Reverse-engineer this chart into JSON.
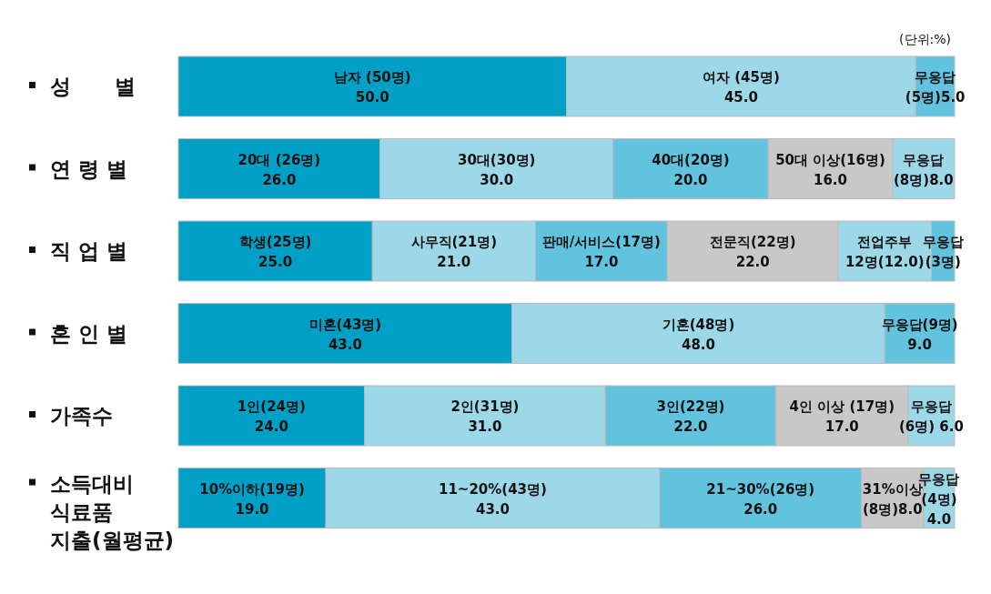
{
  "chart_data": {
    "type": "bar",
    "orientation": "horizontal",
    "stacked": true,
    "xlim": [
      0,
      100
    ],
    "annotations": [
      "(단위:%)"
    ],
    "categories": [
      "성      별",
      "연 령 별",
      "직 업 별",
      "혼 인 별",
      "가족수",
      "소득대비\n식료품\n지출(월평균)"
    ],
    "series": [
      {
        "colors": [
          "#00a0c6",
          "#00a0c6",
          "#00a0c6",
          "#00a0c6",
          "#00a0c6",
          "#00a0c6"
        ],
        "values": [
          50,
          26,
          25,
          43,
          24,
          19
        ],
        "value_labels": [
          "남자 (50명)\n50.0",
          "20대 (26명)\n26.0",
          "학생(25명)\n25.0",
          "미혼(43명)\n43.0",
          "1인(24명)\n24.0",
          "10%이하(19명)\n19.0"
        ]
      },
      {
        "colors": [
          "#9dd8e8",
          "#9dd8e8",
          "#9dd8e8",
          "#9dd8e8",
          "#9dd8e8",
          "#9dd8e8"
        ],
        "values": [
          45,
          30,
          21,
          48,
          31,
          43
        ],
        "value_labels": [
          "여자 (45명)\n45.0",
          "30대(30명)\n30.0",
          "사무직(21명)\n21.0",
          "기혼(48명)\n48.0",
          "2인(31명)\n31.0",
          "11~20%(43명)\n43.0"
        ]
      },
      {
        "colors": [
          "#62c3de",
          "#62c3de",
          "#62c3de",
          "#62c3de",
          "#62c3de",
          "#62c3de"
        ],
        "values": [
          5,
          20,
          17,
          9,
          22,
          26
        ],
        "value_labels": [
          "무응답\n(5명)5.0",
          "40대(20명)\n20.0",
          "판매/서비스(17명)\n17.0",
          "무응답(9명)\n9.0",
          "3인(22명)\n22.0",
          "21~30%(26명)\n26.0"
        ]
      },
      {
        "colors": [
          null,
          "#c8c8c8",
          "#c8c8c8",
          null,
          "#c8c8c8",
          "#c8c8c8"
        ],
        "values": [
          null,
          16,
          22,
          null,
          17,
          8
        ],
        "value_labels": [
          null,
          "50대 이상(16명)\n16.0",
          "전문직(22명)\n22.0",
          null,
          "4인 이상 (17명)\n17.0",
          "31%이상\n(8명)8.0"
        ]
      },
      {
        "colors": [
          null,
          "#9dd8e8",
          "#9dd8e8",
          null,
          "#9dd8e8",
          "#9dd8e8"
        ],
        "values": [
          null,
          8,
          12,
          null,
          6,
          4
        ],
        "value_labels": [
          null,
          "무응답\n(8명)8.0",
          "전업주부\n12명(12.0)",
          null,
          "무응답\n(6명) 6.0",
          "무응답\n(4명)\n4.0"
        ]
      },
      {
        "colors": [
          null,
          null,
          "#62c3de",
          null,
          null,
          null
        ],
        "values": [
          null,
          null,
          3,
          null,
          null,
          null
        ],
        "value_labels": [
          null,
          null,
          "무응답\n(3명)",
          null,
          null,
          null
        ]
      }
    ]
  }
}
